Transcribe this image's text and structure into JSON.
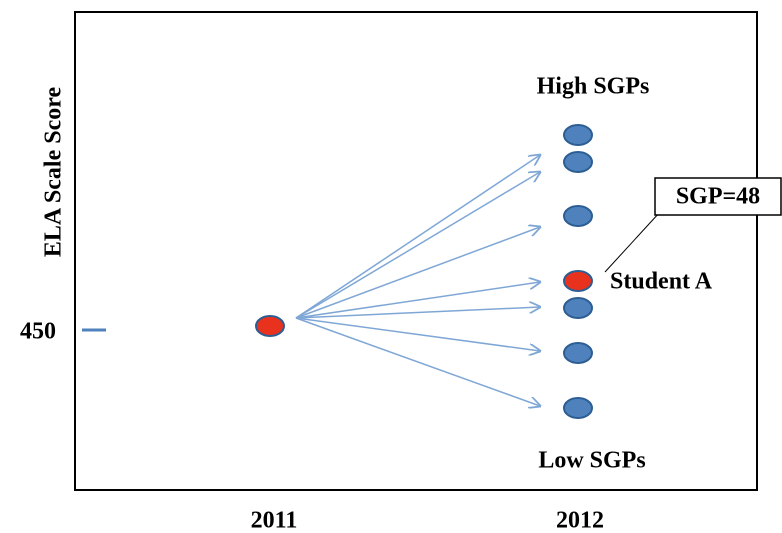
{
  "y_axis_label": "ELA Scale Score",
  "y_tick": "450",
  "x_labels": [
    "2011",
    "2012"
  ],
  "top_label": "High SGPs",
  "bottom_label": "Low SGPs",
  "callout": "SGP=48",
  "student_label": "Student A"
}
